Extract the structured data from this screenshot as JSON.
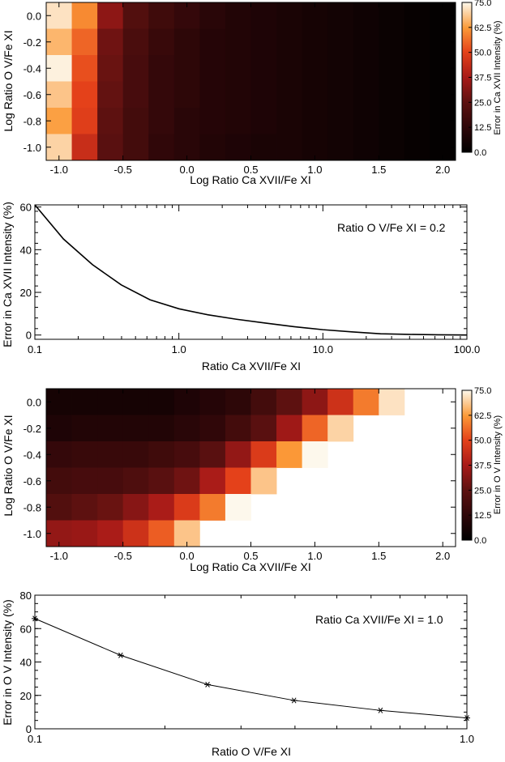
{
  "chart_data": [
    {
      "type": "heatmap",
      "xlabel": "Log Ratio Ca XVII/Fe XI",
      "ylabel": "Log Ratio O V/Fe XI",
      "colorbar_label": "Error in Ca XVII Intensity (%)",
      "colorbar_ticks": [
        "0.0",
        "12.5",
        "25.0",
        "37.5",
        "50.0",
        "62.5",
        "75.0"
      ],
      "colorbar_range": [
        0,
        75
      ],
      "xlim": [
        -1.1,
        2.1
      ],
      "ylim": [
        -1.1,
        0.1
      ],
      "x_ticks": [
        "-1.0",
        "-0.5",
        "0.0",
        "0.5",
        "1.0",
        "1.5",
        "2.0"
      ],
      "y_ticks": [
        "0.0",
        "-0.2",
        "-0.4",
        "-0.6",
        "-0.8",
        "-1.0"
      ],
      "x_centers": [
        -1.0,
        -0.8,
        -0.6,
        -0.4,
        -0.2,
        0.0,
        0.2,
        0.4,
        0.6,
        0.8,
        1.0,
        1.2,
        1.4,
        1.6,
        1.8,
        2.0
      ],
      "y_centers": [
        0.0,
        -0.2,
        -0.4,
        -0.6,
        -0.8,
        -1.0
      ],
      "values": [
        [
          72,
          60,
          33,
          22,
          17,
          14,
          11,
          9,
          8,
          7,
          6,
          5,
          4,
          3,
          2,
          1
        ],
        [
          66,
          55,
          28,
          20,
          15,
          12,
          10,
          9,
          8,
          7,
          6,
          5,
          4,
          3,
          2,
          1
        ],
        [
          74,
          52,
          27,
          19,
          14,
          12,
          10,
          9,
          8,
          7,
          6,
          5,
          4,
          3,
          2,
          1
        ],
        [
          68,
          50,
          26,
          19,
          14,
          12,
          10,
          9,
          8,
          7,
          6,
          5,
          4,
          3,
          2,
          1
        ],
        [
          63,
          49,
          25,
          18,
          14,
          11,
          10,
          9,
          8,
          7,
          6,
          5,
          4,
          3,
          2,
          1
        ],
        [
          70,
          44,
          24,
          18,
          13,
          11,
          9,
          8,
          7,
          7,
          6,
          5,
          4,
          3,
          2,
          1
        ]
      ]
    },
    {
      "type": "line",
      "xscale": "log",
      "xlabel": "Ratio Ca XVII/Fe XI",
      "ylabel": "Error in Ca XVII Intensity (%)",
      "annotation": "Ratio O V/Fe XI = 0.2",
      "xlim": [
        0.1,
        100
      ],
      "ylim": [
        -2,
        61
      ],
      "x_ticks": [
        "0.1",
        "1.0",
        "10.0",
        "100.0"
      ],
      "y_ticks": [
        "0",
        "20",
        "40",
        "60"
      ],
      "series": [
        {
          "name": "error",
          "x": [
            0.1,
            0.158,
            0.251,
            0.398,
            0.631,
            1.0,
            1.585,
            2.512,
            3.981,
            6.31,
            10.0,
            15.85,
            25.12,
            39.81,
            63.1,
            100.0
          ],
          "values": [
            61,
            45,
            33,
            23.5,
            16.5,
            12.3,
            9.5,
            7.4,
            5.6,
            3.9,
            2.5,
            1.5,
            0.6,
            0.3,
            0.1,
            0
          ]
        }
      ]
    },
    {
      "type": "heatmap",
      "xlabel": "Log Ratio Ca XVII/Fe XI",
      "ylabel": "Log Ratio O V/Fe XI",
      "colorbar_label": "Error in O V Intensity (%)",
      "colorbar_ticks": [
        "0.0",
        "12.5",
        "25.0",
        "37.5",
        "50.0",
        "62.5",
        "75.0"
      ],
      "colorbar_range": [
        0,
        75
      ],
      "xlim": [
        -1.1,
        2.1
      ],
      "ylim": [
        -1.1,
        0.1
      ],
      "x_ticks": [
        "-1.0",
        "-0.5",
        "0.0",
        "0.5",
        "1.0",
        "1.5",
        "2.0"
      ],
      "y_ticks": [
        "0.0",
        "-0.2",
        "-0.4",
        "-0.6",
        "-0.8",
        "-1.0"
      ],
      "x_centers": [
        -1.0,
        -0.8,
        -0.6,
        -0.4,
        -0.2,
        0.0,
        0.2,
        0.4,
        0.6,
        0.8,
        1.0,
        1.2,
        1.4,
        1.6,
        1.8,
        2.0
      ],
      "y_centers": [
        0.0,
        -0.2,
        -0.4,
        -0.6,
        -0.8,
        -1.0
      ],
      "values": [
        [
          6,
          6,
          6,
          6,
          6,
          8,
          10,
          12,
          18,
          25,
          33,
          45,
          58,
          72,
          null,
          null
        ],
        [
          8,
          9,
          9,
          9,
          9,
          11,
          13,
          18,
          24,
          36,
          55,
          70,
          null,
          null,
          null,
          null
        ],
        [
          14,
          15,
          15,
          15,
          17,
          19,
          24,
          34,
          48,
          62,
          78,
          null,
          null,
          null,
          null,
          null
        ],
        [
          18,
          19,
          19,
          21,
          24,
          28,
          38,
          50,
          68,
          null,
          null,
          null,
          null,
          null,
          null,
          null
        ],
        [
          22,
          25,
          27,
          32,
          38,
          48,
          58,
          78,
          null,
          null,
          null,
          null,
          null,
          null,
          null,
          null
        ],
        [
          34,
          35,
          38,
          45,
          54,
          68,
          null,
          null,
          null,
          null,
          null,
          null,
          null,
          null,
          null,
          null
        ]
      ]
    },
    {
      "type": "line",
      "xscale": "log",
      "xlabel": "Ratio O V/Fe XI",
      "ylabel": "Error in O V Intensity (%)",
      "annotation": "Ratio Ca XVII/Fe XI = 1.0",
      "xlim": [
        0.1,
        1.0
      ],
      "ylim": [
        0,
        80
      ],
      "x_ticks": [
        "0.1",
        "1.0"
      ],
      "y_ticks": [
        "0",
        "20",
        "40",
        "60",
        "80"
      ],
      "series": [
        {
          "name": "error",
          "x": [
            0.1,
            0.158,
            0.251,
            0.398,
            0.631,
            1.0
          ],
          "values": [
            66,
            44,
            26.5,
            17,
            11,
            6.5
          ],
          "marker": "asterisk"
        }
      ]
    }
  ]
}
